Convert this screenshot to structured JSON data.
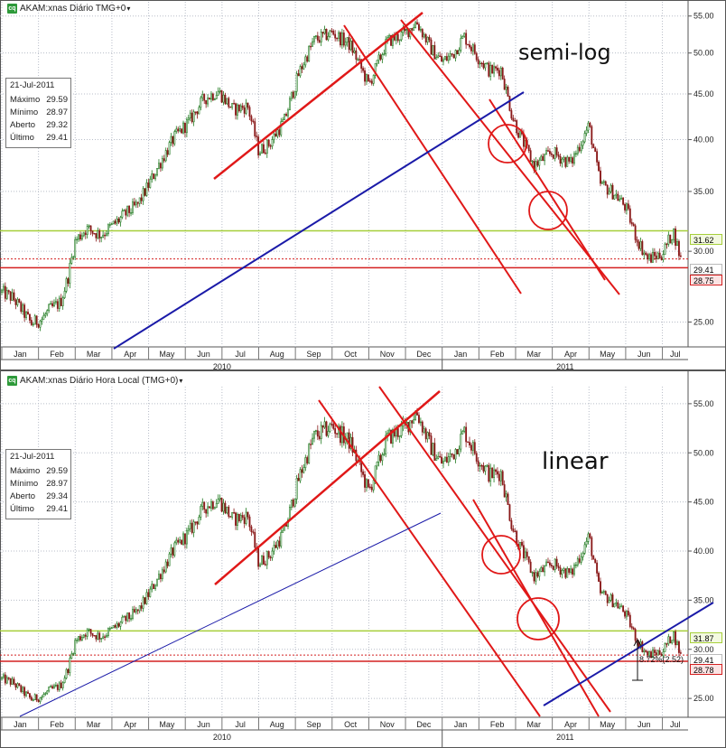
{
  "colors": {
    "up": "#1f7a1f",
    "down": "#8a1a1a",
    "trend_red": "#e01818",
    "trend_blue": "#1a1aa8",
    "hline_green": "#a6cf3a",
    "hline_red": "#d42020",
    "grid": "#b8bdc8"
  },
  "panels": [
    {
      "id": "top",
      "header": "AKAM:xnas Diário TMG+0",
      "annotation": "semi-log",
      "info": {
        "date": "21-Jul-2011",
        "rows": [
          {
            "label": "Máximo",
            "value": "29.59"
          },
          {
            "label": "Mínimo",
            "value": "28.97"
          },
          {
            "label": "Aberto",
            "value": "29.32"
          },
          {
            "label": "Último",
            "value": "29.41"
          }
        ]
      },
      "price_tags": [
        "31.62",
        "29.41",
        "28.75"
      ],
      "y_ticks": [
        "55.00",
        "50.00",
        "45.00",
        "40.00",
        "35.00",
        "30.00",
        "25.00"
      ],
      "months": [
        "Jan",
        "Feb",
        "Mar",
        "Apr",
        "May",
        "Jun",
        "Jul",
        "Aug",
        "Sep",
        "Oct",
        "Nov",
        "Dec",
        "Jan",
        "Feb",
        "Mar",
        "Apr",
        "May",
        "Jun",
        "Jul"
      ],
      "years": [
        "2010",
        "2011"
      ]
    },
    {
      "id": "bottom",
      "header": "AKAM:xnas Diário Hora Local (TMG+0)",
      "annotation": "linear",
      "info": {
        "date": "21-Jul-2011",
        "rows": [
          {
            "label": "Máximo",
            "value": "29.59"
          },
          {
            "label": "Mínimo",
            "value": "28.97"
          },
          {
            "label": "Aberto",
            "value": "29.34"
          },
          {
            "label": "Último",
            "value": "29.41"
          }
        ]
      },
      "price_tags": [
        "31.87",
        "29.41",
        "28.78"
      ],
      "measure_label": "8.72%(2.52)",
      "y_ticks": [
        "55.00",
        "50.00",
        "45.00",
        "40.00",
        "35.00",
        "30.00",
        "25.00"
      ],
      "months": [
        "Jan",
        "Feb",
        "Mar",
        "Apr",
        "May",
        "Jun",
        "Jul",
        "Aug",
        "Sep",
        "Oct",
        "Nov",
        "Dec",
        "Jan",
        "Feb",
        "Mar",
        "Apr",
        "May",
        "Jun",
        "Jul"
      ],
      "years": [
        "2010",
        "2011"
      ]
    }
  ],
  "chart_data": {
    "type": "candlestick",
    "ticker": "AKAM",
    "x_unit": "months since Jan 2010",
    "xlim": [
      0,
      18.7
    ],
    "ylim": [
      24,
      56
    ],
    "price_points": [
      [
        0.0,
        27.0
      ],
      [
        0.3,
        26.6
      ],
      [
        0.6,
        25.6
      ],
      [
        0.8,
        24.9
      ],
      [
        1.1,
        25.2
      ],
      [
        1.3,
        25.8
      ],
      [
        1.6,
        26.3
      ],
      [
        1.8,
        28.0
      ],
      [
        2.0,
        30.8
      ],
      [
        2.3,
        31.8
      ],
      [
        2.7,
        31.3
      ],
      [
        3.0,
        32.0
      ],
      [
        3.4,
        33.1
      ],
      [
        3.7,
        33.8
      ],
      [
        4.0,
        35.6
      ],
      [
        4.3,
        37.6
      ],
      [
        4.7,
        40.2
      ],
      [
        5.1,
        41.9
      ],
      [
        5.5,
        44.4
      ],
      [
        5.9,
        45.3
      ],
      [
        6.3,
        43.2
      ],
      [
        6.7,
        43.6
      ],
      [
        7.0,
        38.8
      ],
      [
        7.3,
        39.6
      ],
      [
        7.7,
        42.0
      ],
      [
        8.1,
        47.5
      ],
      [
        8.5,
        51.6
      ],
      [
        9.0,
        52.7
      ],
      [
        9.5,
        51.0
      ],
      [
        10.0,
        46.0
      ],
      [
        10.5,
        51.5
      ],
      [
        11.0,
        52.6
      ],
      [
        11.3,
        54.2
      ],
      [
        11.7,
        50.5
      ],
      [
        12.0,
        48.9
      ],
      [
        12.3,
        49.9
      ],
      [
        12.6,
        52.2
      ],
      [
        13.0,
        49.3
      ],
      [
        13.3,
        47.7
      ],
      [
        13.6,
        48.0
      ],
      [
        13.9,
        42.6
      ],
      [
        14.1,
        40.6
      ],
      [
        14.5,
        37.4
      ],
      [
        15.0,
        38.7
      ],
      [
        15.5,
        37.6
      ],
      [
        15.8,
        39.9
      ],
      [
        16.0,
        41.5
      ],
      [
        16.3,
        35.7
      ],
      [
        16.7,
        34.8
      ],
      [
        17.0,
        33.6
      ],
      [
        17.3,
        31.0
      ],
      [
        17.6,
        29.4
      ],
      [
        18.0,
        29.8
      ],
      [
        18.3,
        31.6
      ],
      [
        18.5,
        29.4
      ]
    ],
    "horizontal_lines": [
      {
        "semi_log": 31.62,
        "linear": 31.87,
        "color": "green"
      },
      {
        "semi_log": 29.41,
        "linear": 29.41,
        "color": "red-dotted"
      },
      {
        "semi_log": 28.75,
        "linear": 28.78,
        "color": "red"
      }
    ]
  }
}
